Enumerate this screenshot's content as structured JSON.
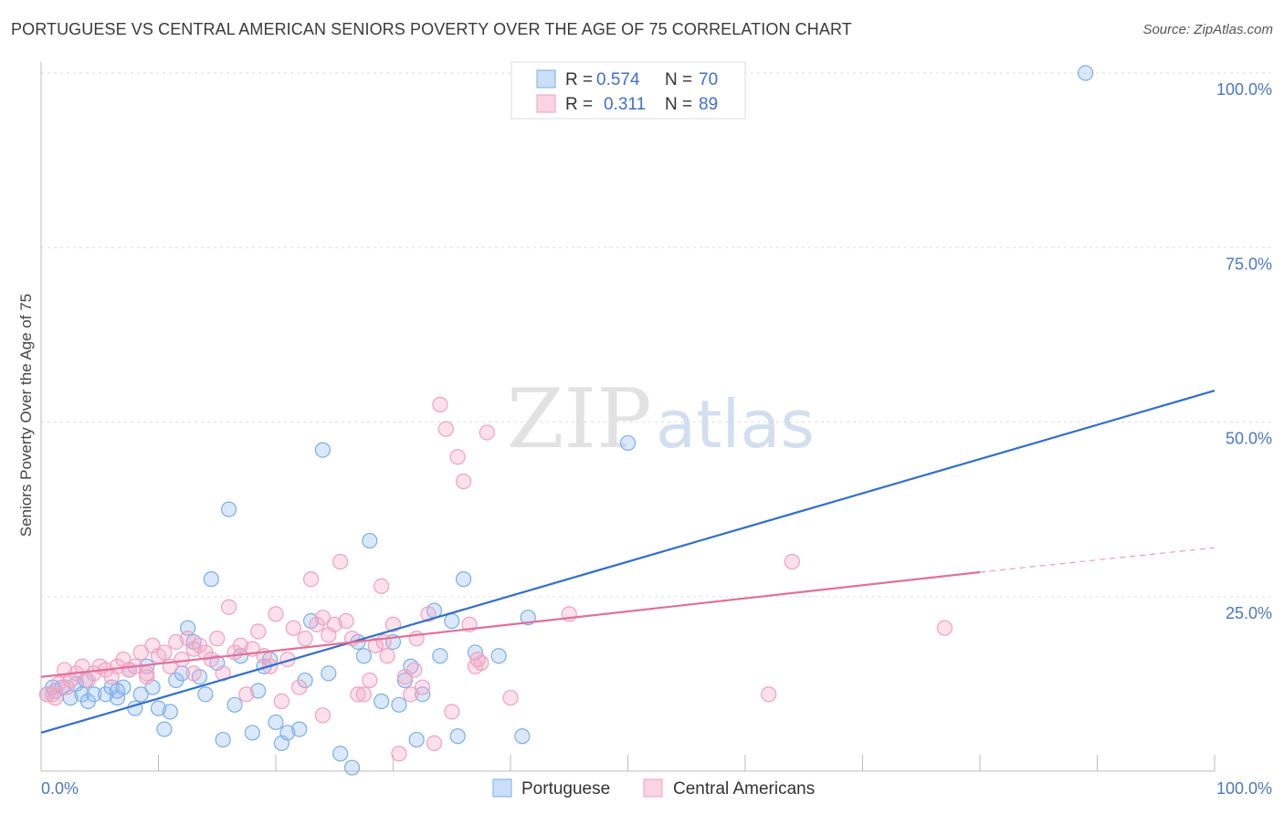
{
  "title": "PORTUGUESE VS CENTRAL AMERICAN SENIORS POVERTY OVER THE AGE OF 75 CORRELATION CHART",
  "source": "Source: ZipAtlas.com",
  "watermark": {
    "zip": "ZIP",
    "atlas": "atlas"
  },
  "chart_data": {
    "type": "scatter",
    "xlabel": "",
    "ylabel": "Seniors Poverty Over the Age of 75",
    "xlim": [
      0,
      100
    ],
    "ylim": [
      0,
      100
    ],
    "x_tick_labels": [
      "0.0%",
      "100.0%"
    ],
    "y_tick_labels": [
      "100.0%",
      "75.0%",
      "50.0%",
      "25.0%"
    ],
    "y_ticks": [
      100,
      75,
      50,
      25
    ],
    "grid": true,
    "legend_top": [
      {
        "r_label": "R =",
        "r_value": "0.574",
        "n_label": "N =",
        "n_value": "70"
      },
      {
        "r_label": "R =",
        "r_value": "0.311",
        "n_label": "N =",
        "n_value": "89"
      }
    ],
    "series": [
      {
        "name": "Portuguese",
        "color": "#7aaee8",
        "fill": "rgba(150,190,240,0.35)",
        "trend_color": "#2f6fcc",
        "trend": {
          "x0": 0,
          "y0": 5.5,
          "x1": 100,
          "y1": 54.5
        },
        "points": [
          [
            0.5,
            11
          ],
          [
            1.2,
            11.5
          ],
          [
            1.8,
            12
          ],
          [
            2.5,
            10.5
          ],
          [
            3,
            12.5
          ],
          [
            3.5,
            11
          ],
          [
            4,
            10
          ],
          [
            4.5,
            11
          ],
          [
            5.5,
            11
          ],
          [
            6,
            12
          ],
          [
            6.5,
            10.5
          ],
          [
            7,
            12
          ],
          [
            7.5,
            14.5
          ],
          [
            8,
            9
          ],
          [
            8.5,
            11
          ],
          [
            9,
            15
          ],
          [
            9.5,
            12
          ],
          [
            10,
            9
          ],
          [
            10.5,
            6
          ],
          [
            11,
            8.5
          ],
          [
            11.5,
            13
          ],
          [
            12,
            14
          ],
          [
            12.5,
            20.5
          ],
          [
            13,
            18.5
          ],
          [
            13.5,
            13.5
          ],
          [
            14,
            11
          ],
          [
            14.5,
            27.5
          ],
          [
            15,
            15.5
          ],
          [
            15.5,
            4.5
          ],
          [
            16,
            37.5
          ],
          [
            16.5,
            9.5
          ],
          [
            17,
            16.5
          ],
          [
            18,
            5.5
          ],
          [
            18.5,
            11.5
          ],
          [
            19,
            15
          ],
          [
            19.5,
            16
          ],
          [
            20,
            7
          ],
          [
            20.5,
            4
          ],
          [
            21,
            5.5
          ],
          [
            22,
            6
          ],
          [
            22.5,
            13
          ],
          [
            23,
            21.5
          ],
          [
            24,
            46
          ],
          [
            24.5,
            14
          ],
          [
            25.5,
            2.5
          ],
          [
            26.5,
            0.5
          ],
          [
            27,
            18.5
          ],
          [
            27.5,
            16.5
          ],
          [
            28,
            33
          ],
          [
            29,
            10
          ],
          [
            30,
            18.5
          ],
          [
            30.5,
            9.5
          ],
          [
            31,
            13
          ],
          [
            31.5,
            15
          ],
          [
            32,
            4.5
          ],
          [
            32.5,
            11
          ],
          [
            33.5,
            23
          ],
          [
            34,
            16.5
          ],
          [
            35,
            21.5
          ],
          [
            35.5,
            5
          ],
          [
            36,
            27.5
          ],
          [
            37,
            17
          ],
          [
            39,
            16.5
          ],
          [
            41,
            5
          ],
          [
            41.5,
            22
          ],
          [
            50,
            47
          ],
          [
            89,
            100
          ],
          [
            6.5,
            11.5
          ],
          [
            3.8,
            13
          ],
          [
            1,
            12
          ]
        ]
      },
      {
        "name": "Central Americans",
        "color": "#f0a0bd",
        "fill": "rgba(245,170,200,0.35)",
        "trend_color": "#e0709a",
        "trend": {
          "x0": 0,
          "y0": 13.5,
          "x1": 80,
          "y1": 28.5
        },
        "trend_dash": {
          "x0": 80,
          "y0": 28.5,
          "x1": 100,
          "y1": 32
        },
        "points": [
          [
            0.5,
            11
          ],
          [
            1,
            11
          ],
          [
            1.5,
            12.5
          ],
          [
            2,
            14.5
          ],
          [
            2.5,
            13
          ],
          [
            3,
            14
          ],
          [
            3.5,
            15
          ],
          [
            4,
            13
          ],
          [
            4.5,
            14
          ],
          [
            5,
            15
          ],
          [
            5.5,
            14.5
          ],
          [
            6,
            13.5
          ],
          [
            6.5,
            15
          ],
          [
            7,
            16
          ],
          [
            7.5,
            14.5
          ],
          [
            8,
            15
          ],
          [
            8.5,
            17
          ],
          [
            9,
            14
          ],
          [
            9.5,
            18
          ],
          [
            10,
            16.5
          ],
          [
            10.5,
            17
          ],
          [
            11,
            15
          ],
          [
            11.5,
            18.5
          ],
          [
            12,
            16
          ],
          [
            12.5,
            19
          ],
          [
            13,
            17.5
          ],
          [
            13.5,
            18
          ],
          [
            14,
            17
          ],
          [
            14.5,
            16
          ],
          [
            15,
            19
          ],
          [
            15.5,
            14
          ],
          [
            16,
            23.5
          ],
          [
            16.5,
            17
          ],
          [
            17,
            18
          ],
          [
            17.5,
            11
          ],
          [
            18,
            17.5
          ],
          [
            18.5,
            20
          ],
          [
            19,
            16.5
          ],
          [
            19.5,
            15
          ],
          [
            20,
            22.5
          ],
          [
            20.5,
            10
          ],
          [
            21,
            16
          ],
          [
            21.5,
            20.5
          ],
          [
            22,
            12
          ],
          [
            22.5,
            19
          ],
          [
            23,
            27.5
          ],
          [
            23.5,
            21
          ],
          [
            24,
            8
          ],
          [
            24.5,
            19.5
          ],
          [
            25,
            21
          ],
          [
            25.5,
            30
          ],
          [
            26,
            21.5
          ],
          [
            26.5,
            19
          ],
          [
            27,
            11
          ],
          [
            27.5,
            11
          ],
          [
            28,
            13
          ],
          [
            28.5,
            18
          ],
          [
            29,
            26.5
          ],
          [
            29.5,
            16.5
          ],
          [
            30,
            21
          ],
          [
            30.5,
            2.5
          ],
          [
            31,
            13.5
          ],
          [
            31.5,
            11
          ],
          [
            32,
            19
          ],
          [
            32.5,
            12
          ],
          [
            33,
            22.5
          ],
          [
            33.5,
            4
          ],
          [
            34,
            52.5
          ],
          [
            34.5,
            49
          ],
          [
            35,
            8.5
          ],
          [
            35.5,
            45
          ],
          [
            36,
            41.5
          ],
          [
            36.5,
            21
          ],
          [
            37,
            15
          ],
          [
            37.5,
            15.5
          ],
          [
            38,
            48.5
          ],
          [
            40,
            10.5
          ],
          [
            45,
            22.5
          ],
          [
            62,
            11
          ],
          [
            64,
            30
          ],
          [
            77,
            20.5
          ],
          [
            1.2,
            10.5
          ],
          [
            2.2,
            12
          ],
          [
            9,
            13.5
          ],
          [
            13,
            14
          ],
          [
            24,
            22
          ],
          [
            31.8,
            14.5
          ],
          [
            37.2,
            16
          ],
          [
            29.2,
            18.5
          ]
        ]
      }
    ]
  }
}
